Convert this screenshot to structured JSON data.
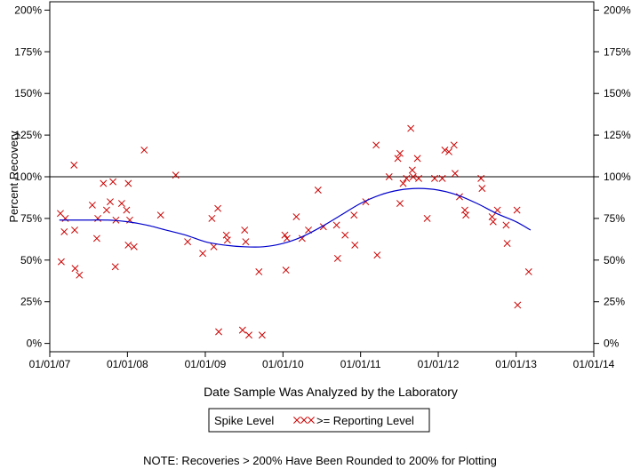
{
  "chart_data": {
    "type": "scatter",
    "title": "",
    "xlabel": "Date Sample Was Analyzed by the Laboratory",
    "ylabel": "Percent Recovery",
    "xlim": [
      "2007-01-01",
      "2014-01-01"
    ],
    "ylim": [
      -5,
      205
    ],
    "x_ticks": [
      {
        "value": "2007-01-01",
        "label": "01/01/07"
      },
      {
        "value": "2008-01-01",
        "label": "01/01/08"
      },
      {
        "value": "2009-01-01",
        "label": "01/01/09"
      },
      {
        "value": "2010-01-01",
        "label": "01/01/10"
      },
      {
        "value": "2011-01-01",
        "label": "01/01/11"
      },
      {
        "value": "2012-01-01",
        "label": "01/01/12"
      },
      {
        "value": "2013-01-01",
        "label": "01/01/13"
      },
      {
        "value": "2014-01-01",
        "label": "01/01/14"
      }
    ],
    "y_ticks": [
      {
        "value": 0,
        "label": "0%"
      },
      {
        "value": 25,
        "label": "25%"
      },
      {
        "value": 50,
        "label": "50%"
      },
      {
        "value": 75,
        "label": "75%"
      },
      {
        "value": 100,
        "label": "100%"
      },
      {
        "value": 125,
        "label": "125%"
      },
      {
        "value": 150,
        "label": "150%"
      },
      {
        "value": 175,
        "label": "175%"
      },
      {
        "value": 200,
        "label": "200%"
      }
    ],
    "reference_line": {
      "y": 100,
      "color": "#000000"
    },
    "grid": false,
    "legend": {
      "position": "bottom",
      "title": "Spike Level",
      "entries": [
        {
          "marker": "xxx",
          "label": ">= Reporting Level",
          "color": "#cc0000"
        }
      ]
    },
    "series": [
      {
        "name": ">= Reporting Level",
        "color": "#cc0000",
        "marker": "x",
        "points": [
          {
            "x": "2007-02-20",
            "y": 78
          },
          {
            "x": "2007-02-24",
            "y": 49
          },
          {
            "x": "2007-03-10",
            "y": 67
          },
          {
            "x": "2007-03-15",
            "y": 75
          },
          {
            "x": "2007-04-25",
            "y": 107
          },
          {
            "x": "2007-04-28",
            "y": 68
          },
          {
            "x": "2007-04-30",
            "y": 45
          },
          {
            "x": "2007-05-20",
            "y": 41
          },
          {
            "x": "2007-07-20",
            "y": 83
          },
          {
            "x": "2007-08-10",
            "y": 63
          },
          {
            "x": "2007-08-15",
            "y": 75
          },
          {
            "x": "2007-09-10",
            "y": 96
          },
          {
            "x": "2007-09-25",
            "y": 80
          },
          {
            "x": "2007-10-12",
            "y": 85
          },
          {
            "x": "2007-10-25",
            "y": 97
          },
          {
            "x": "2007-11-08",
            "y": 74
          },
          {
            "x": "2007-11-05",
            "y": 46
          },
          {
            "x": "2007-12-05",
            "y": 84
          },
          {
            "x": "2007-12-28",
            "y": 80
          },
          {
            "x": "2008-01-05",
            "y": 96
          },
          {
            "x": "2008-01-12",
            "y": 74
          },
          {
            "x": "2008-01-05",
            "y": 59
          },
          {
            "x": "2008-02-01",
            "y": 58
          },
          {
            "x": "2008-03-20",
            "y": 116
          },
          {
            "x": "2008-06-05",
            "y": 77
          },
          {
            "x": "2008-08-15",
            "y": 101
          },
          {
            "x": "2008-10-10",
            "y": 61
          },
          {
            "x": "2008-12-20",
            "y": 54
          },
          {
            "x": "2009-02-01",
            "y": 75
          },
          {
            "x": "2009-02-10",
            "y": 58
          },
          {
            "x": "2009-03-01",
            "y": 81
          },
          {
            "x": "2009-03-05",
            "y": 7
          },
          {
            "x": "2009-04-10",
            "y": 65
          },
          {
            "x": "2009-04-15",
            "y": 62
          },
          {
            "x": "2009-07-05",
            "y": 68
          },
          {
            "x": "2009-07-10",
            "y": 61
          },
          {
            "x": "2009-06-25",
            "y": 8
          },
          {
            "x": "2009-07-25",
            "y": 5
          },
          {
            "x": "2009-09-10",
            "y": 43
          },
          {
            "x": "2009-09-25",
            "y": 5
          },
          {
            "x": "2010-01-10",
            "y": 65
          },
          {
            "x": "2010-01-20",
            "y": 63
          },
          {
            "x": "2010-01-15",
            "y": 44
          },
          {
            "x": "2010-03-05",
            "y": 76
          },
          {
            "x": "2010-04-01",
            "y": 63
          },
          {
            "x": "2010-05-01",
            "y": 68
          },
          {
            "x": "2010-06-15",
            "y": 92
          },
          {
            "x": "2010-07-10",
            "y": 70
          },
          {
            "x": "2010-09-10",
            "y": 71
          },
          {
            "x": "2010-09-15",
            "y": 51
          },
          {
            "x": "2010-10-20",
            "y": 65
          },
          {
            "x": "2010-12-01",
            "y": 77
          },
          {
            "x": "2010-12-05",
            "y": 59
          },
          {
            "x": "2011-01-25",
            "y": 85
          },
          {
            "x": "2011-03-15",
            "y": 119
          },
          {
            "x": "2011-03-20",
            "y": 53
          },
          {
            "x": "2011-05-15",
            "y": 100
          },
          {
            "x": "2011-06-25",
            "y": 111
          },
          {
            "x": "2011-07-05",
            "y": 114
          },
          {
            "x": "2011-07-05",
            "y": 84
          },
          {
            "x": "2011-07-20",
            "y": 96
          },
          {
            "x": "2011-08-05",
            "y": 99
          },
          {
            "x": "2011-08-25",
            "y": 129
          },
          {
            "x": "2011-09-01",
            "y": 104
          },
          {
            "x": "2011-09-05",
            "y": 100
          },
          {
            "x": "2011-09-25",
            "y": 111
          },
          {
            "x": "2011-10-01",
            "y": 99
          },
          {
            "x": "2011-11-10",
            "y": 75
          },
          {
            "x": "2011-12-15",
            "y": 99
          },
          {
            "x": "2012-01-20",
            "y": 99
          },
          {
            "x": "2012-02-01",
            "y": 116
          },
          {
            "x": "2012-02-20",
            "y": 115
          },
          {
            "x": "2012-03-15",
            "y": 119
          },
          {
            "x": "2012-03-20",
            "y": 102
          },
          {
            "x": "2012-04-10",
            "y": 88
          },
          {
            "x": "2012-05-05",
            "y": 80
          },
          {
            "x": "2012-05-10",
            "y": 77
          },
          {
            "x": "2012-07-20",
            "y": 99
          },
          {
            "x": "2012-07-25",
            "y": 93
          },
          {
            "x": "2012-09-10",
            "y": 76
          },
          {
            "x": "2012-09-15",
            "y": 73
          },
          {
            "x": "2012-10-05",
            "y": 80
          },
          {
            "x": "2012-11-15",
            "y": 71
          },
          {
            "x": "2012-11-20",
            "y": 60
          },
          {
            "x": "2013-01-05",
            "y": 80
          },
          {
            "x": "2013-01-08",
            "y": 23
          },
          {
            "x": "2013-03-01",
            "y": 43
          }
        ]
      }
    ],
    "trend": {
      "color": "#0000cc",
      "points": [
        {
          "x": "2007-02-15",
          "y": 74
        },
        {
          "x": "2007-06-01",
          "y": 74
        },
        {
          "x": "2007-10-01",
          "y": 74
        },
        {
          "x": "2008-01-01",
          "y": 73
        },
        {
          "x": "2008-04-01",
          "y": 71
        },
        {
          "x": "2008-07-01",
          "y": 68
        },
        {
          "x": "2008-10-01",
          "y": 65
        },
        {
          "x": "2009-01-01",
          "y": 61
        },
        {
          "x": "2009-04-01",
          "y": 59
        },
        {
          "x": "2009-07-01",
          "y": 58
        },
        {
          "x": "2009-10-01",
          "y": 58
        },
        {
          "x": "2010-01-01",
          "y": 60
        },
        {
          "x": "2010-04-01",
          "y": 64
        },
        {
          "x": "2010-07-01",
          "y": 70
        },
        {
          "x": "2010-10-01",
          "y": 77
        },
        {
          "x": "2011-01-01",
          "y": 84
        },
        {
          "x": "2011-04-01",
          "y": 89
        },
        {
          "x": "2011-07-01",
          "y": 92
        },
        {
          "x": "2011-10-01",
          "y": 93
        },
        {
          "x": "2012-01-01",
          "y": 92
        },
        {
          "x": "2012-04-01",
          "y": 89
        },
        {
          "x": "2012-07-01",
          "y": 84
        },
        {
          "x": "2012-10-01",
          "y": 78
        },
        {
          "x": "2013-01-01",
          "y": 73
        },
        {
          "x": "2013-03-10",
          "y": 68
        }
      ]
    },
    "note": "NOTE: Recoveries > 200% Have Been Rounded to 200% for Plotting"
  }
}
